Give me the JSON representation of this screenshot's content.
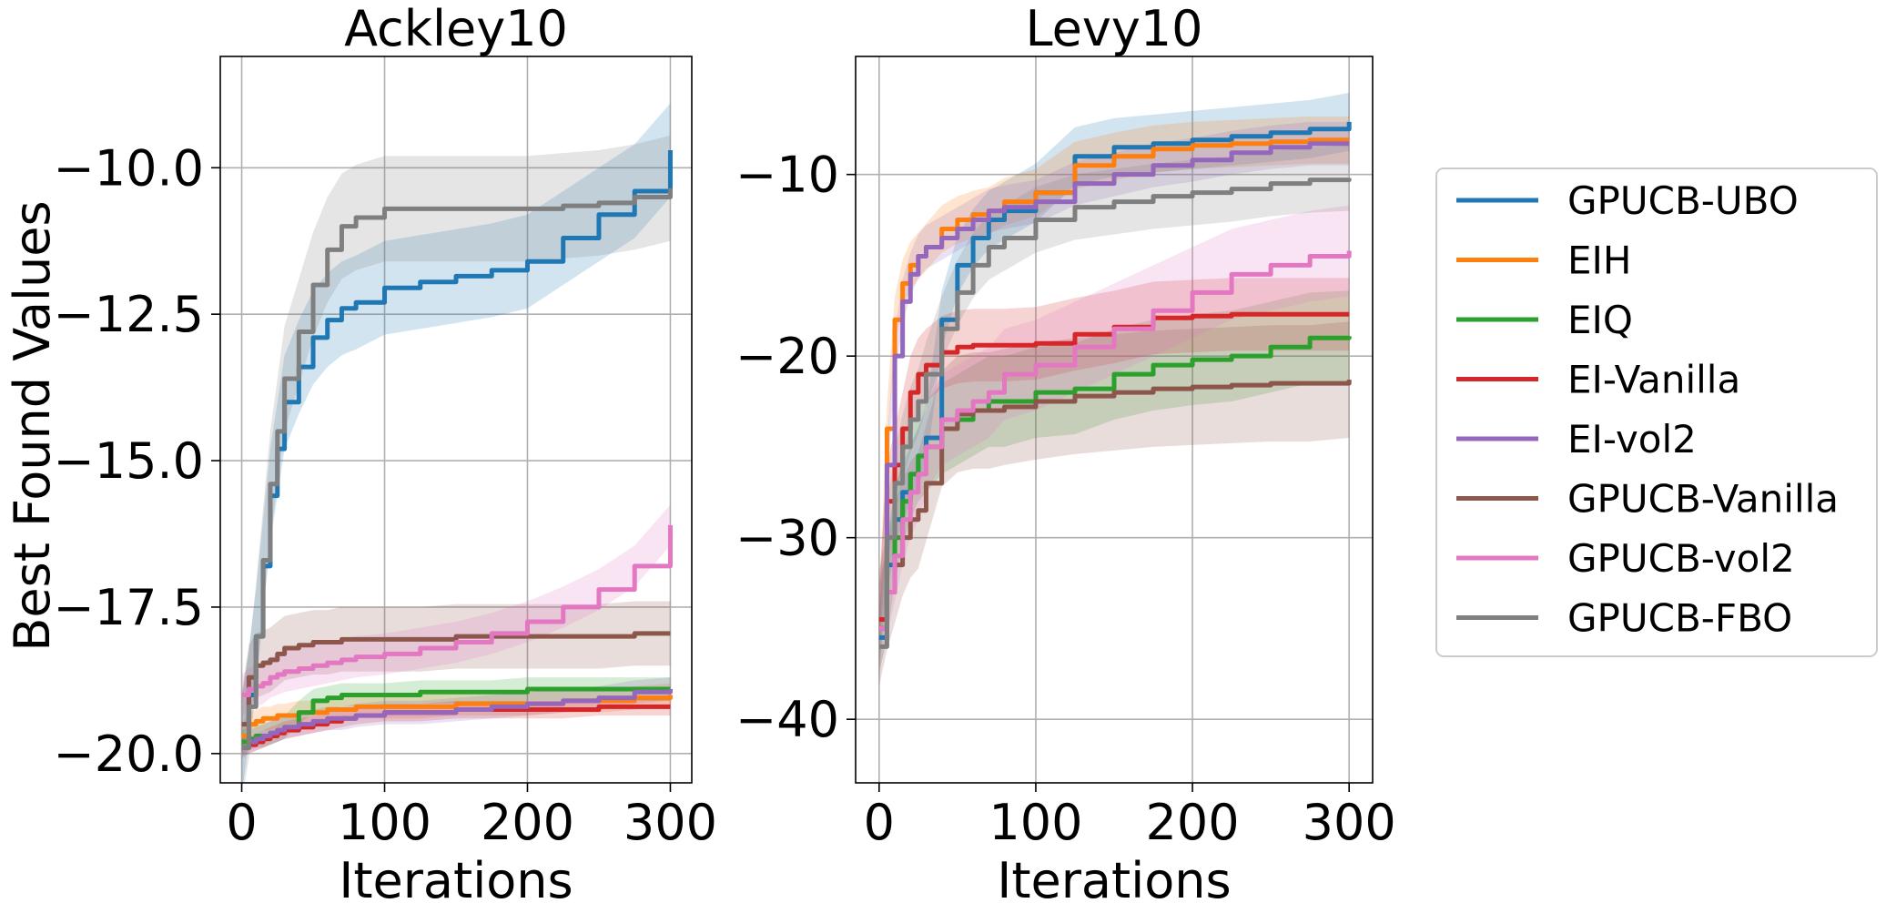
{
  "figure": {
    "ylabel": "Best Found Values"
  },
  "legend": {
    "placement": "right",
    "entries": [
      {
        "name": "GPUCB-UBO",
        "color": "#1f77b4"
      },
      {
        "name": "EIH",
        "color": "#ff7f0e"
      },
      {
        "name": "EIQ",
        "color": "#2ca02c"
      },
      {
        "name": "EI-Vanilla",
        "color": "#d62728"
      },
      {
        "name": "EI-vol2",
        "color": "#9467bd"
      },
      {
        "name": "GPUCB-Vanilla",
        "color": "#8c564b"
      },
      {
        "name": "GPUCB-vol2",
        "color": "#e377c2"
      },
      {
        "name": "GPUCB-FBO",
        "color": "#7f7f7f"
      }
    ]
  },
  "chart_data": [
    {
      "type": "line",
      "title": "Ackley10",
      "xlabel": "Iterations",
      "ylabel": "Best Found Values",
      "xlim": [
        -15,
        315
      ],
      "ylim": [
        -20.5,
        -8.1
      ],
      "xticks": [
        0,
        100,
        200,
        300
      ],
      "xtick_labels": [
        "0",
        "100",
        "200",
        "300"
      ],
      "yticks": [
        -20,
        -17.5,
        -15,
        -12.5,
        -10
      ],
      "ytick_labels": [
        "−20.0",
        "−17.5",
        "−15.0",
        "−12.5",
        "−10.0"
      ],
      "grid": true,
      "x": [
        0,
        5,
        10,
        15,
        20,
        25,
        30,
        40,
        50,
        60,
        70,
        80,
        100,
        125,
        150,
        175,
        200,
        225,
        250,
        275,
        300
      ],
      "series": [
        {
          "name": "GPUCB-UBO",
          "values": [
            -19.9,
            -19.0,
            -18.0,
            -16.8,
            -15.6,
            -14.8,
            -14.0,
            -13.4,
            -12.9,
            -12.6,
            -12.4,
            -12.3,
            -12.05,
            -11.95,
            -11.85,
            -11.75,
            -11.6,
            -11.2,
            -10.8,
            -10.4,
            -9.7
          ],
          "band": 0.8
        },
        {
          "name": "EIH",
          "values": [
            -19.7,
            -19.5,
            -19.45,
            -19.4,
            -19.4,
            -19.35,
            -19.35,
            -19.3,
            -19.3,
            -19.25,
            -19.25,
            -19.2,
            -19.2,
            -19.2,
            -19.15,
            -19.15,
            -19.15,
            -19.1,
            -19.1,
            -19.05,
            -19.0
          ],
          "band": 0.2
        },
        {
          "name": "EIQ",
          "values": [
            -19.8,
            -19.75,
            -19.7,
            -19.7,
            -19.65,
            -19.6,
            -19.55,
            -19.3,
            -19.1,
            -19.05,
            -19.0,
            -19.0,
            -19.0,
            -18.95,
            -18.95,
            -18.95,
            -18.9,
            -18.9,
            -18.9,
            -18.9,
            -18.9
          ],
          "band": 0.2
        },
        {
          "name": "EI-Vanilla",
          "values": [
            -19.9,
            -19.85,
            -19.8,
            -19.75,
            -19.7,
            -19.65,
            -19.6,
            -19.55,
            -19.5,
            -19.45,
            -19.4,
            -19.35,
            -19.3,
            -19.3,
            -19.25,
            -19.25,
            -19.25,
            -19.25,
            -19.2,
            -19.2,
            -19.2
          ],
          "band": 0.15
        },
        {
          "name": "EI-vol2",
          "values": [
            -19.9,
            -19.8,
            -19.75,
            -19.7,
            -19.65,
            -19.6,
            -19.55,
            -19.5,
            -19.45,
            -19.4,
            -19.4,
            -19.35,
            -19.3,
            -19.3,
            -19.25,
            -19.2,
            -19.15,
            -19.1,
            -19.05,
            -18.95,
            -18.9
          ],
          "band": 0.2
        },
        {
          "name": "GPUCB-Vanilla",
          "values": [
            -19.5,
            -18.7,
            -18.5,
            -18.45,
            -18.4,
            -18.3,
            -18.2,
            -18.15,
            -18.1,
            -18.1,
            -18.05,
            -18.05,
            -18.05,
            -18.05,
            -18.0,
            -18.0,
            -18.0,
            -18.0,
            -18.0,
            -17.95,
            -17.95
          ],
          "band": 0.55
        },
        {
          "name": "GPUCB-vol2",
          "values": [
            -19.0,
            -18.9,
            -18.85,
            -18.8,
            -18.7,
            -18.65,
            -18.6,
            -18.55,
            -18.5,
            -18.45,
            -18.4,
            -18.35,
            -18.3,
            -18.2,
            -18.1,
            -17.95,
            -17.75,
            -17.5,
            -17.2,
            -16.8,
            -16.1
          ],
          "band": 0.35
        },
        {
          "name": "GPUCB-FBO",
          "values": [
            -19.9,
            -19.2,
            -18.0,
            -16.7,
            -15.4,
            -14.5,
            -13.6,
            -12.8,
            -12.0,
            -11.4,
            -11.0,
            -10.85,
            -10.7,
            -10.7,
            -10.7,
            -10.7,
            -10.7,
            -10.65,
            -10.6,
            -10.5,
            -10.35
          ],
          "band": 0.9
        }
      ]
    },
    {
      "type": "line",
      "title": "Levy10",
      "xlabel": "Iterations",
      "ylabel": "",
      "xlim": [
        -15,
        315
      ],
      "ylim": [
        -43.5,
        -3.5
      ],
      "xticks": [
        0,
        100,
        200,
        300
      ],
      "xtick_labels": [
        "0",
        "100",
        "200",
        "300"
      ],
      "yticks": [
        -40,
        -30,
        -20,
        -10
      ],
      "ytick_labels": [
        "−40",
        "−30",
        "−20",
        "−10"
      ],
      "grid": true,
      "x": [
        0,
        5,
        10,
        15,
        20,
        25,
        30,
        40,
        50,
        60,
        70,
        80,
        100,
        125,
        150,
        175,
        200,
        225,
        250,
        275,
        300
      ],
      "series": [
        {
          "name": "GPUCB-UBO",
          "values": [
            -35.5,
            -31.5,
            -29.0,
            -27.5,
            -26.5,
            -25.5,
            -24.5,
            -18.0,
            -15.0,
            -13.5,
            -12.5,
            -12.0,
            -11.0,
            -9.0,
            -8.5,
            -8.3,
            -8.1,
            -7.9,
            -7.7,
            -7.5,
            -7.1
          ],
          "band": 1.6
        },
        {
          "name": "EIH",
          "values": [
            -35.0,
            -24.0,
            -18.0,
            -16.0,
            -15.0,
            -14.5,
            -14.0,
            -13.0,
            -12.5,
            -12.2,
            -12.0,
            -11.5,
            -11.0,
            -9.5,
            -9.0,
            -8.6,
            -8.4,
            -8.3,
            -8.2,
            -8.1,
            -8.1
          ],
          "band": 1.3
        },
        {
          "name": "EIQ",
          "values": [
            -35.0,
            -33.0,
            -30.0,
            -28.0,
            -26.5,
            -25.5,
            -25.0,
            -24.0,
            -23.5,
            -23.0,
            -22.5,
            -22.5,
            -22.0,
            -21.8,
            -21.0,
            -20.5,
            -20.2,
            -20.0,
            -19.5,
            -19.0,
            -18.9
          ],
          "band": 2.5
        },
        {
          "name": "EI-Vanilla",
          "values": [
            -34.5,
            -28.0,
            -26.0,
            -24.0,
            -22.0,
            -21.0,
            -20.5,
            -19.8,
            -19.5,
            -19.4,
            -19.4,
            -19.4,
            -19.3,
            -18.8,
            -18.4,
            -17.9,
            -17.8,
            -17.7,
            -17.7,
            -17.7,
            -17.7
          ],
          "band": 2.0
        },
        {
          "name": "EI-vol2",
          "values": [
            -35.0,
            -26.0,
            -20.0,
            -17.0,
            -15.5,
            -14.5,
            -14.0,
            -13.5,
            -13.0,
            -12.5,
            -12.0,
            -11.8,
            -11.5,
            -10.5,
            -10.0,
            -9.5,
            -9.2,
            -8.8,
            -8.5,
            -8.3,
            -8.3
          ],
          "band": 1.2
        },
        {
          "name": "GPUCB-Vanilla",
          "values": [
            -35.0,
            -33.0,
            -31.5,
            -30.0,
            -29.0,
            -28.5,
            -27.0,
            -24.0,
            -23.2,
            -23.0,
            -23.0,
            -22.8,
            -22.5,
            -22.2,
            -22.0,
            -21.8,
            -21.7,
            -21.6,
            -21.5,
            -21.5,
            -21.3
          ],
          "band": 3.2
        },
        {
          "name": "GPUCB-vol2",
          "values": [
            -35.0,
            -33.0,
            -31.0,
            -29.0,
            -27.5,
            -26.5,
            -25.0,
            -23.5,
            -23.0,
            -22.5,
            -22.0,
            -21.0,
            -20.5,
            -19.5,
            -18.5,
            -17.5,
            -16.5,
            -15.5,
            -15.0,
            -14.5,
            -14.2
          ],
          "band": 2.5
        },
        {
          "name": "GPUCB-FBO",
          "values": [
            -36.0,
            -30.0,
            -27.0,
            -25.0,
            -23.5,
            -22.5,
            -21.0,
            -18.5,
            -16.5,
            -15.0,
            -14.0,
            -13.5,
            -12.5,
            -11.8,
            -11.5,
            -11.2,
            -11.0,
            -10.8,
            -10.5,
            -10.3,
            -10.2
          ],
          "band": 1.8
        }
      ]
    }
  ]
}
